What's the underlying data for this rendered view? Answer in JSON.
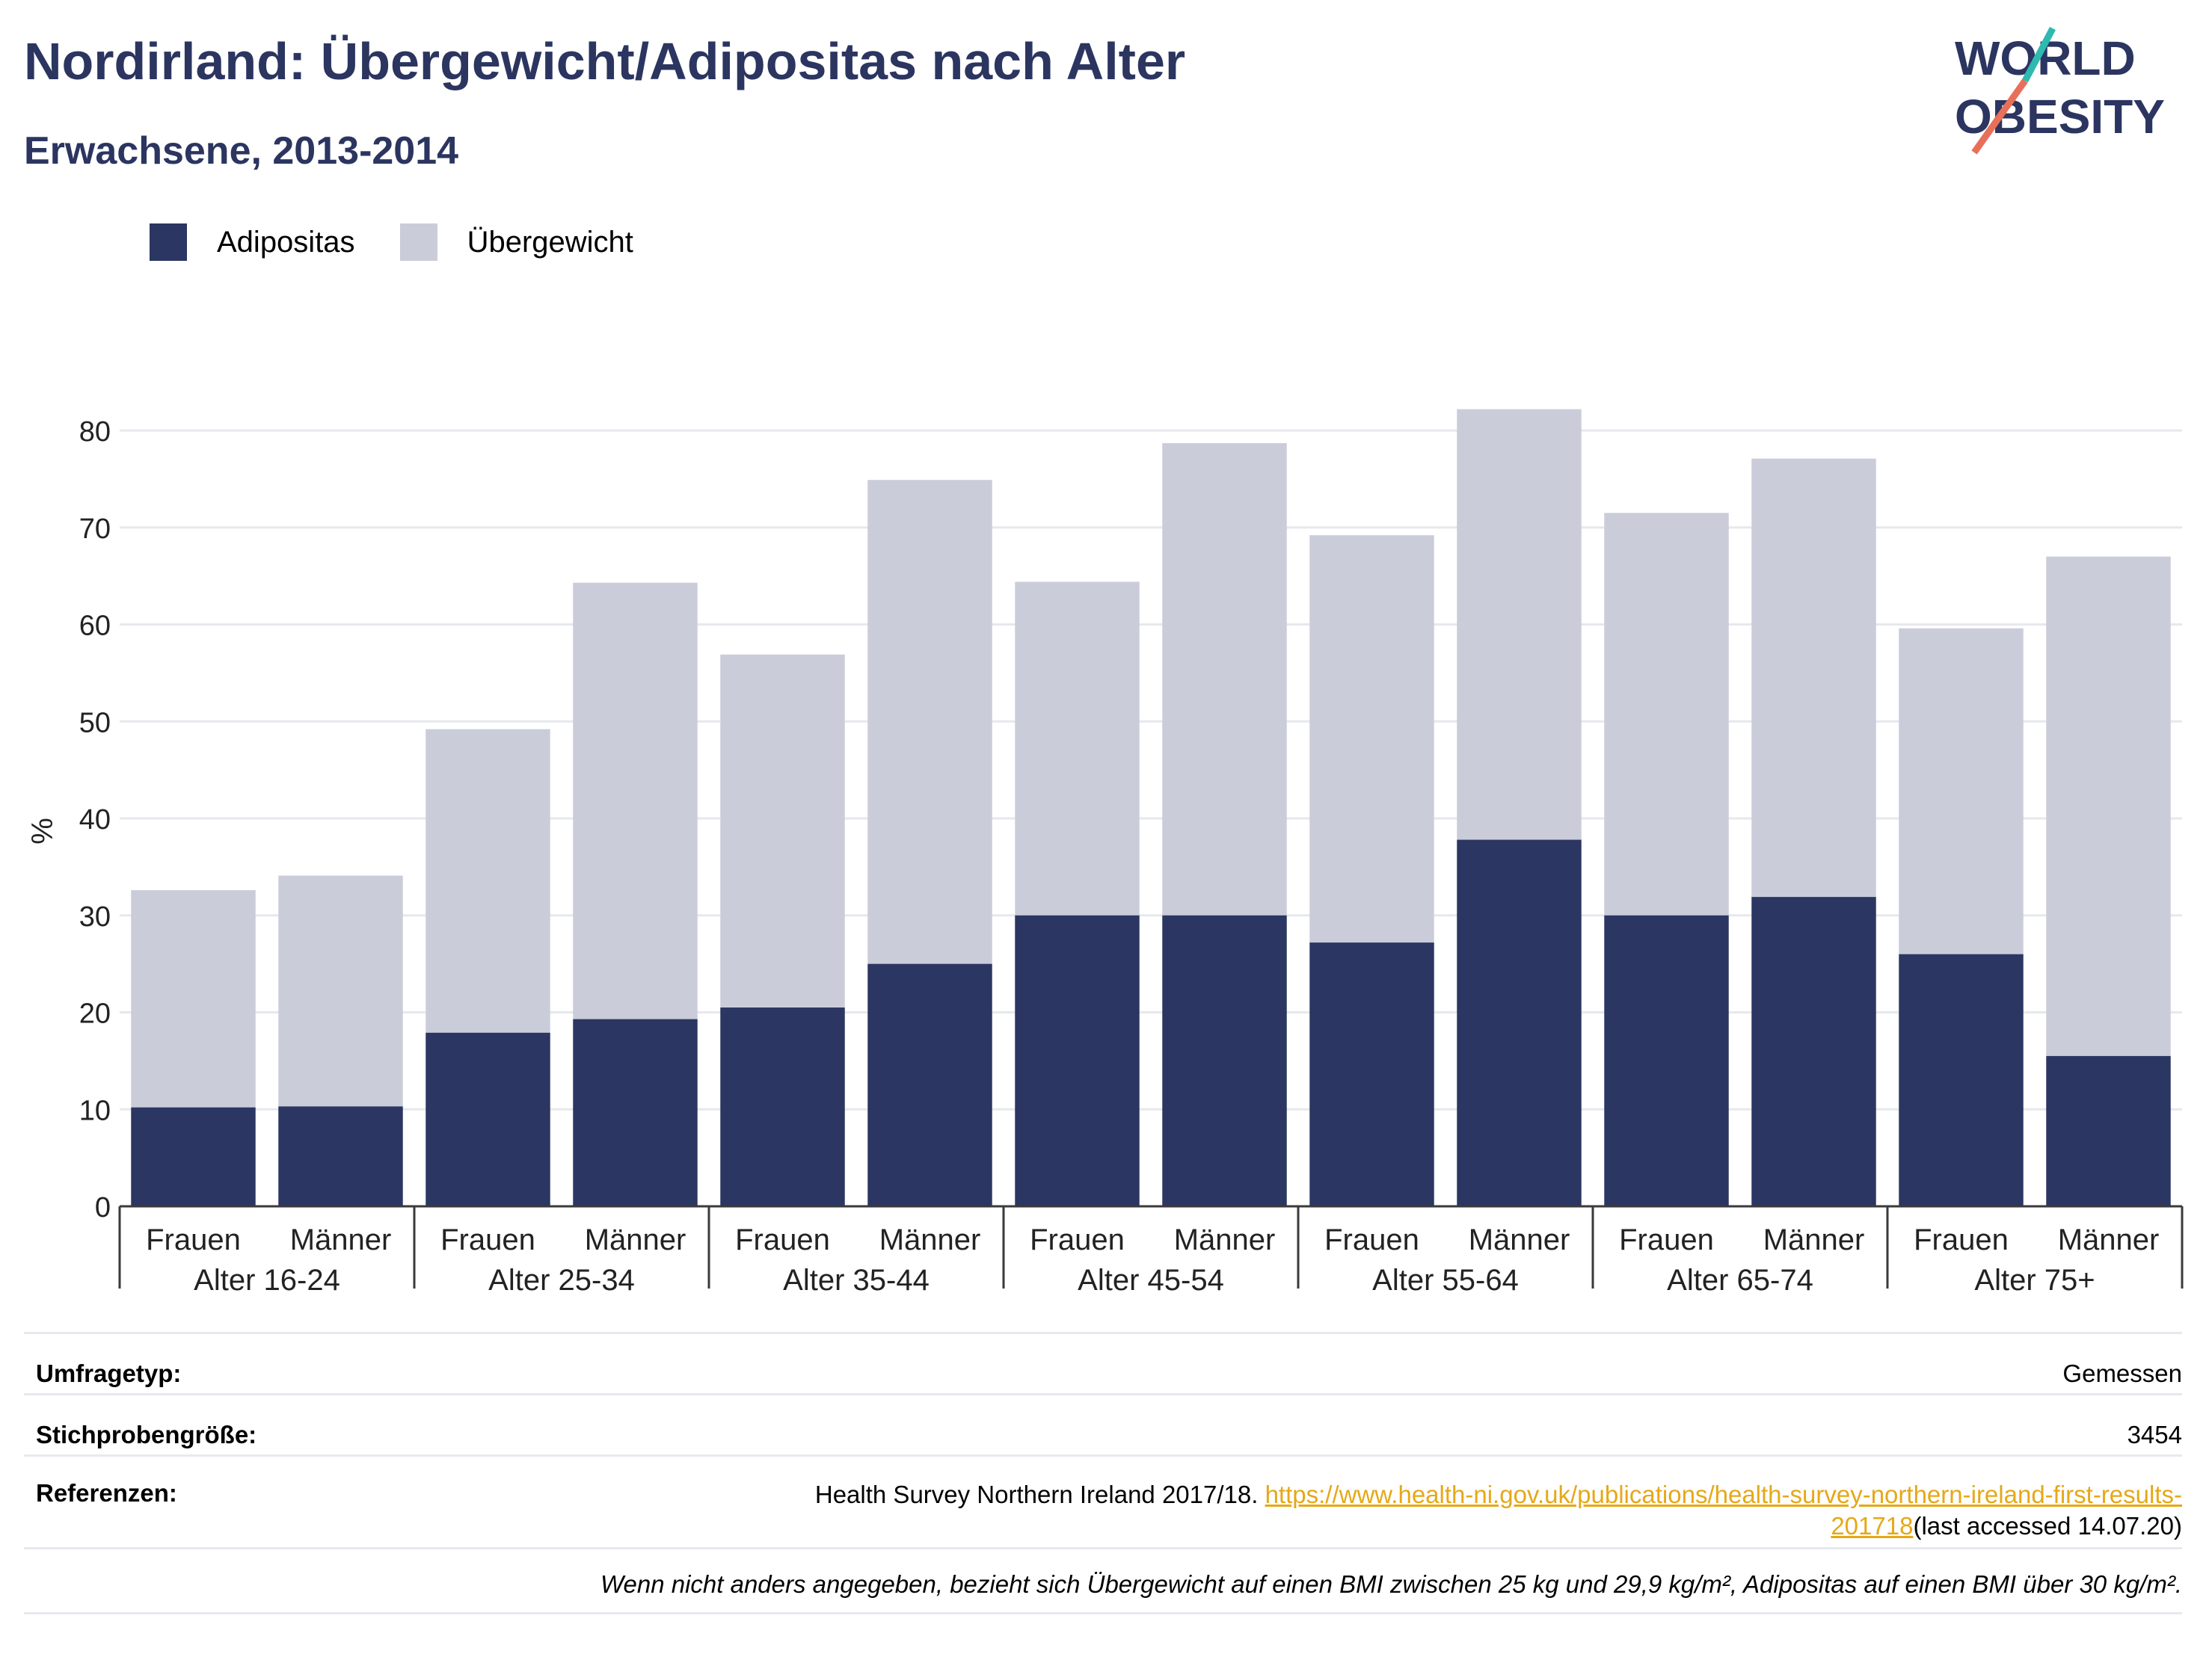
{
  "title": "Nordirland: Übergewicht/Adipositas nach Alter",
  "subtitle": "Erwachsene, 2013-2014",
  "logo": {
    "line1": "WORLD",
    "line2": "OBESITY",
    "accent_colors": [
      "#2fb9b0",
      "#e8705a"
    ]
  },
  "colors": {
    "adipositas": "#2b3662",
    "uebergewicht": "#cacdd9",
    "grid": "#e6e8ee",
    "axis": "#3a3a3a",
    "title": "#2b3560",
    "link": "#e6a817"
  },
  "chart_data": {
    "type": "bar",
    "stacked": true,
    "ylabel": "%",
    "ylim": [
      0,
      80
    ],
    "yticks": [
      0,
      10,
      20,
      30,
      40,
      50,
      60,
      70,
      80
    ],
    "grid": true,
    "legend_position": "top-left",
    "groups": [
      "Alter 16-24",
      "Alter 25-34",
      "Alter 35-44",
      "Alter 45-54",
      "Alter 55-64",
      "Alter 65-74",
      "Alter 75+"
    ],
    "categories": [
      "Frauen",
      "Männer",
      "Frauen",
      "Männer",
      "Frauen",
      "Männer",
      "Frauen",
      "Männer",
      "Frauen",
      "Männer",
      "Frauen",
      "Männer",
      "Frauen",
      "Männer"
    ],
    "series": [
      {
        "name": "Adipositas",
        "values": [
          10.2,
          10.3,
          17.9,
          19.3,
          20.5,
          25.0,
          30.0,
          30.0,
          27.2,
          37.8,
          30.0,
          31.9,
          26.0,
          15.5
        ]
      },
      {
        "name": "Übergewicht",
        "values": [
          22.4,
          23.8,
          31.3,
          45.0,
          36.4,
          49.9,
          34.4,
          48.7,
          42.0,
          44.4,
          41.5,
          45.2,
          33.6,
          51.5
        ]
      }
    ]
  },
  "info": {
    "survey_type_label": "Umfragetyp:",
    "survey_type_value": "Gemessen",
    "sample_label": "Stichprobengröße:",
    "sample_value": "3454",
    "refs_label": "Referenzen:",
    "refs_text": "Health Survey Northern Ireland 2017/18.",
    "refs_link_line1": "https://www.health-ni.gov.uk/publications/health-survey-northern-ireland-first-results-",
    "refs_link_line2": "201718",
    "refs_suffix": "(last accessed 14.07.20)",
    "note": "Wenn nicht anders angegeben, bezieht sich Übergewicht auf einen BMI zwischen 25 kg und 29,9 kg/m², Adipositas auf einen BMI über 30 kg/m²."
  }
}
